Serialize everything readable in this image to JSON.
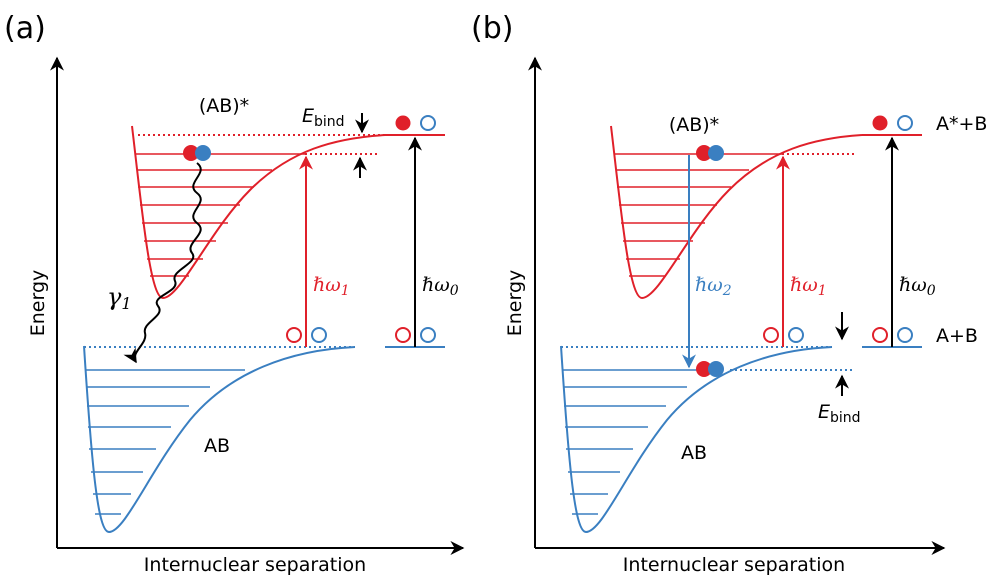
{
  "colors": {
    "red": "#e0202a",
    "blue": "#3a7fc1",
    "black": "#000000"
  },
  "panel_a": {
    "tag": "(a)",
    "y_label": "Energy",
    "x_label": "Internuclear separation",
    "excited_label": "(AB)*",
    "ground_label": "AB",
    "gamma_sym": "γ",
    "gamma_sub": "1",
    "ebind_main": "E",
    "ebind_sub": "bind",
    "omega1_main": "ℏω",
    "omega1_sub": "1",
    "omega0_main": "ℏω",
    "omega0_sub": "0"
  },
  "panel_b": {
    "tag": "(b)",
    "y_label": "Energy",
    "x_label": "Internuclear separation",
    "excited_label": "(AB)*",
    "ground_label": "AB",
    "asym_upper": "A*+B",
    "asym_lower": "A+B",
    "ebind_main": "E",
    "ebind_sub": "bind",
    "omega2_main": "ℏω",
    "omega2_sub": "2",
    "omega1_main": "ℏω",
    "omega1_sub": "1",
    "omega0_main": "ℏω",
    "omega0_sub": "0"
  }
}
